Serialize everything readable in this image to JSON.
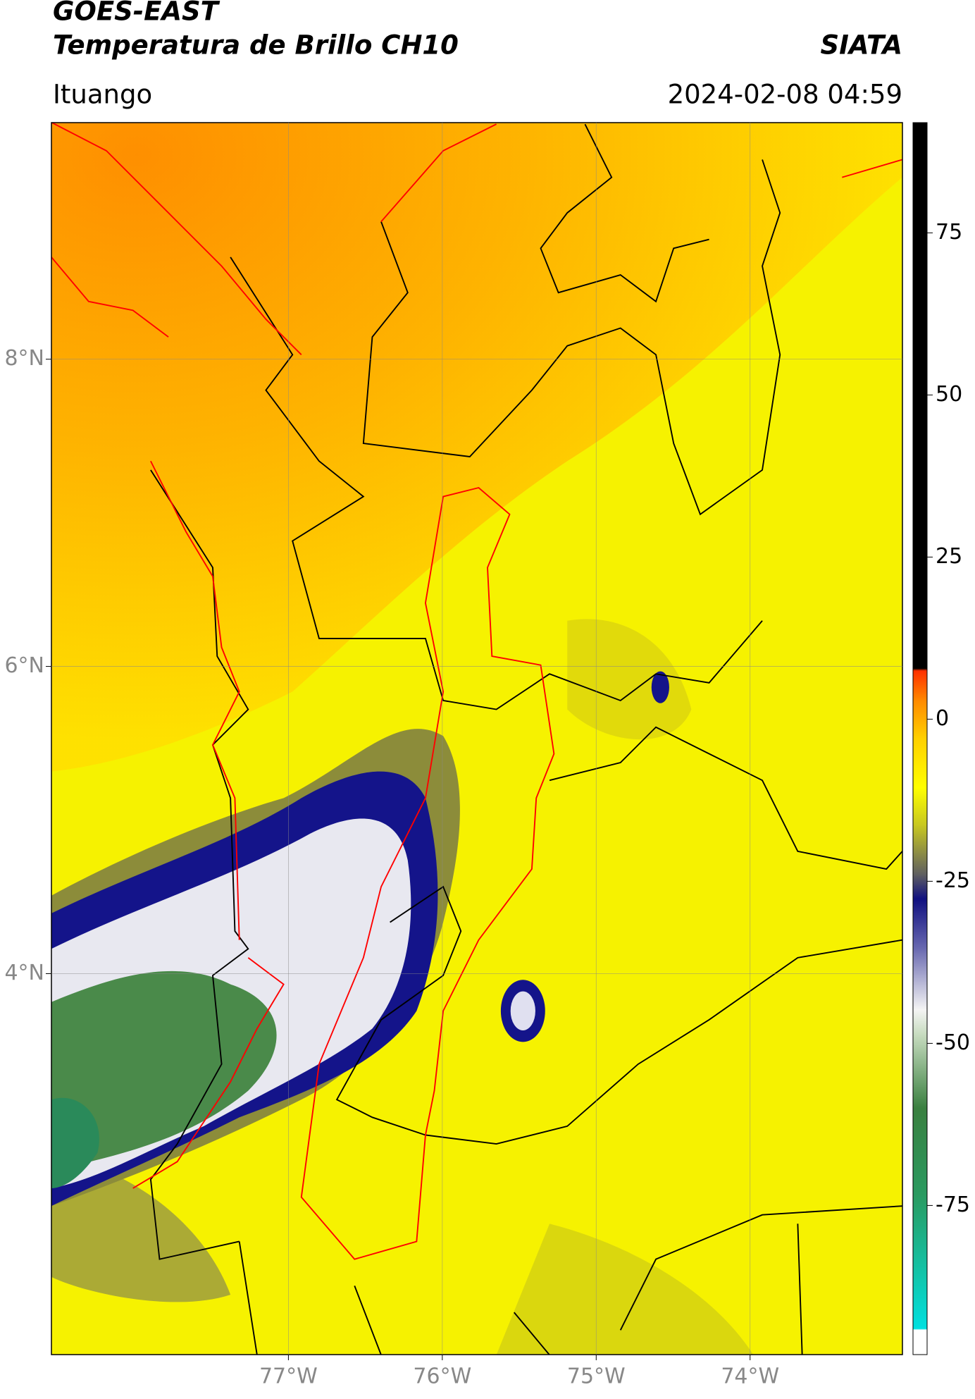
{
  "header": {
    "title_line1": "GOES-EAST",
    "title_line2": "Temperatura de Brillo CH10",
    "source": "SIATA",
    "region": "Ituango",
    "datetime": "2024-02-08 04:59"
  },
  "map": {
    "lat_range": [
      1.52,
      9.54
    ],
    "lon_range": [
      -78.54,
      -73.01
    ],
    "lat_ticks": [
      {
        "value": 8,
        "label": "8°N"
      },
      {
        "value": 6,
        "label": "6°N"
      },
      {
        "value": 4,
        "label": "4°N"
      }
    ],
    "lon_ticks": [
      {
        "value": -77,
        "label": "77°W"
      },
      {
        "value": -76,
        "label": "76°W"
      },
      {
        "value": -75,
        "label": "75°W"
      },
      {
        "value": -74,
        "label": "74°W"
      }
    ]
  },
  "colorbar": {
    "range": [
      -98,
      92
    ],
    "ticks": [
      75,
      50,
      25,
      0,
      -25,
      -50,
      -75
    ]
  }
}
